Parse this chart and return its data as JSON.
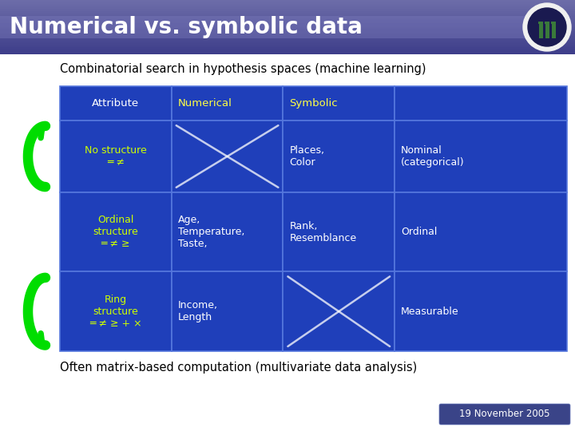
{
  "title": "Numerical vs. symbolic data",
  "subtitle": "Combinatorial search in hypothesis spaces (machine learning)",
  "footer_text": "Often matrix-based computation (multivariate data analysis)",
  "date_text": "19 November 2005",
  "slide_bg": "#ffffff",
  "table_bg": "#1a3ab0",
  "table_border": "#4466cc",
  "rows": [
    {
      "label": "Attribute",
      "col2": "Numerical",
      "col3": "Symbolic",
      "col4": "",
      "label_color": "#ffffff",
      "col2_color": "#ffff44",
      "col3_color": "#ffff44",
      "col4_color": "#ffffff",
      "cross2": false,
      "cross3": false,
      "label_bold": false
    },
    {
      "label": "No structure\n═ ≠",
      "col2": "",
      "col3": "Places,\nColor",
      "col4": "Nominal\n(categorical)",
      "label_color": "#ccff00",
      "col2_color": "#ffffff",
      "col3_color": "#ffffff",
      "col4_color": "#ffffff",
      "cross2": true,
      "cross3": false,
      "label_bold": false
    },
    {
      "label": "Ordinal\nstructure\n═ ≠ ≥",
      "col2": "Age,\nTemperature,\nTaste,",
      "col3": "Rank,\nResemblance",
      "col4": "Ordinal",
      "label_color": "#ccff00",
      "col2_color": "#ffffff",
      "col3_color": "#ffffff",
      "col4_color": "#ffffff",
      "cross2": false,
      "cross3": false,
      "label_bold": false
    },
    {
      "label": "Ring\nstructure\n═ ≠ ≥ + ×",
      "col2": "Income,\nLength",
      "col3": "",
      "col4": "Measurable",
      "label_color": "#ccff00",
      "col2_color": "#ffffff",
      "col3_color": "#ffffff",
      "col4_color": "#ffffff",
      "cross2": false,
      "cross3": true,
      "label_bold": false
    }
  ]
}
